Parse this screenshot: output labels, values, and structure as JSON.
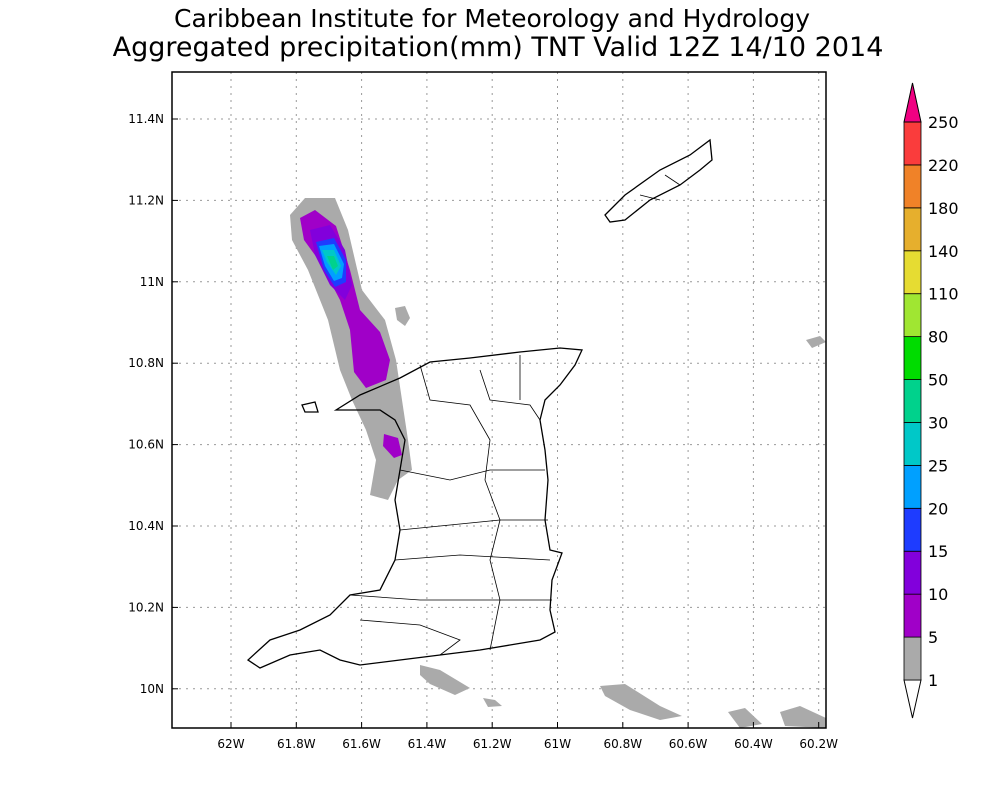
{
  "title": {
    "line1": "Caribbean Institute for Meteorology and Hydrology",
    "line2": "Aggregated precipitation(mm) TNT Valid 12Z 14/10 2014"
  },
  "axes": {
    "lon_ticks": [
      "62W",
      "61.8W",
      "61.6W",
      "61.4W",
      "61.2W",
      "61W",
      "60.8W",
      "60.6W",
      "60.4W",
      "60.2W"
    ],
    "lat_ticks": [
      "11.4N",
      "11.2N",
      "11N",
      "10.8N",
      "10.6N",
      "10.4N",
      "10.2N",
      "10N"
    ]
  },
  "colorbar": {
    "levels": [
      "1",
      "5",
      "10",
      "15",
      "20",
      "25",
      "30",
      "50",
      "80",
      "110",
      "140",
      "180",
      "220",
      "250"
    ],
    "colors": [
      "#ffffff",
      "#aaaaaa",
      "#a000c8",
      "#8200dc",
      "#1e3cff",
      "#00a0ff",
      "#00c8c8",
      "#00d28c",
      "#00dc00",
      "#a0e632",
      "#e6dc32",
      "#e6af2d",
      "#f08228",
      "#fa3c3c",
      "#f00082"
    ]
  },
  "colors": {
    "land_outline": "#000000",
    "grid": "#999999"
  }
}
